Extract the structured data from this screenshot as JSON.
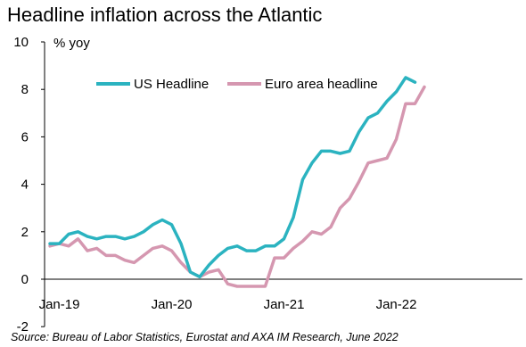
{
  "chart_data": {
    "type": "line",
    "title": "Headline inflation across the Atlantic",
    "ylabel": "% yoy",
    "xlabel": "",
    "source": "Source: Bureau of Labor Statistics, Eurostat and AXA IM Research, June 2022",
    "ylim": [
      -2,
      10
    ],
    "yticks": [
      "-2",
      "0",
      "2",
      "4",
      "6",
      "8",
      "10"
    ],
    "xticks": [
      {
        "label": "Jan-19",
        "month_index": 1
      },
      {
        "label": "Jan-20",
        "month_index": 13
      },
      {
        "label": "Jan-21",
        "month_index": 25
      },
      {
        "label": "Jan-22",
        "month_index": 37
      }
    ],
    "legend_position": "top",
    "grid": false,
    "series": [
      {
        "name": "US Headline",
        "color": "#2bb3c0",
        "start_index": 0,
        "values": [
          1.5,
          1.5,
          1.9,
          2.0,
          1.8,
          1.7,
          1.8,
          1.8,
          1.7,
          1.8,
          2.0,
          2.3,
          2.5,
          2.3,
          1.5,
          0.3,
          0.1,
          0.6,
          1.0,
          1.3,
          1.4,
          1.2,
          1.2,
          1.4,
          1.4,
          1.7,
          2.6,
          4.2,
          4.9,
          5.4,
          5.4,
          5.3,
          5.4,
          6.2,
          6.8,
          7.0,
          7.5,
          7.9,
          8.5,
          8.3
        ]
      },
      {
        "name": "Euro area headline",
        "color": "#d597b0",
        "start_index": 0,
        "values": [
          1.4,
          1.5,
          1.4,
          1.7,
          1.2,
          1.3,
          1.0,
          1.0,
          0.8,
          0.7,
          1.0,
          1.3,
          1.4,
          1.2,
          0.7,
          0.3,
          0.1,
          0.3,
          0.4,
          -0.2,
          -0.3,
          -0.3,
          -0.3,
          -0.3,
          0.9,
          0.9,
          1.3,
          1.6,
          2.0,
          1.9,
          2.2,
          3.0,
          3.4,
          4.1,
          4.9,
          5.0,
          5.1,
          5.9,
          7.4,
          7.4,
          8.1
        ]
      }
    ]
  }
}
